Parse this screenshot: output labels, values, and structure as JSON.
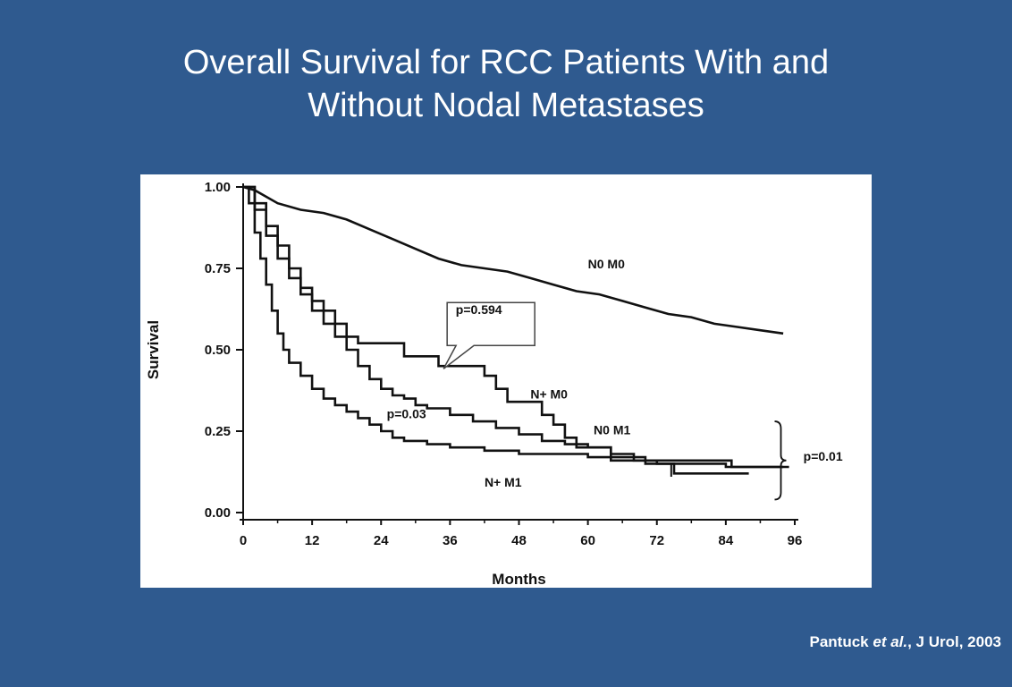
{
  "slide": {
    "title_line1": "Overall Survival for RCC Patients With and",
    "title_line2": "Without Nodal Metastases",
    "citation_author": "Pantuck ",
    "citation_etal": "et al.",
    "citation_rest": ", J Urol, 2003"
  },
  "colors": {
    "background": "#2f5a8f",
    "chart_bg": "#ffffff",
    "ink": "#111111"
  },
  "chart_data": {
    "type": "line",
    "xlabel": "Months",
    "ylabel": "Survival",
    "xlim": [
      0,
      96
    ],
    "ylim": [
      0,
      1
    ],
    "xticks": [
      "0",
      "12",
      "24",
      "36",
      "48",
      "60",
      "72",
      "84",
      "96"
    ],
    "yticks": [
      "0.00",
      "0.25",
      "0.50",
      "0.75",
      "1.00"
    ],
    "grid": false,
    "series": [
      {
        "name": "N0 M0",
        "step": false,
        "points": [
          [
            0,
            1.0
          ],
          [
            2,
            0.99
          ],
          [
            4,
            0.97
          ],
          [
            6,
            0.95
          ],
          [
            10,
            0.93
          ],
          [
            14,
            0.92
          ],
          [
            18,
            0.9
          ],
          [
            22,
            0.87
          ],
          [
            26,
            0.84
          ],
          [
            30,
            0.81
          ],
          [
            34,
            0.78
          ],
          [
            38,
            0.76
          ],
          [
            42,
            0.75
          ],
          [
            46,
            0.74
          ],
          [
            50,
            0.72
          ],
          [
            54,
            0.7
          ],
          [
            58,
            0.68
          ],
          [
            62,
            0.67
          ],
          [
            66,
            0.65
          ],
          [
            70,
            0.63
          ],
          [
            74,
            0.61
          ],
          [
            78,
            0.6
          ],
          [
            82,
            0.58
          ],
          [
            86,
            0.57
          ],
          [
            90,
            0.56
          ],
          [
            94,
            0.55
          ]
        ]
      },
      {
        "name": "N+ M0",
        "step": true,
        "points": [
          [
            0,
            1.0
          ],
          [
            2,
            0.95
          ],
          [
            4,
            0.88
          ],
          [
            6,
            0.82
          ],
          [
            8,
            0.75
          ],
          [
            10,
            0.69
          ],
          [
            12,
            0.65
          ],
          [
            14,
            0.62
          ],
          [
            16,
            0.58
          ],
          [
            18,
            0.54
          ],
          [
            20,
            0.52
          ],
          [
            22,
            0.52
          ],
          [
            28,
            0.48
          ],
          [
            34,
            0.45
          ],
          [
            40,
            0.45
          ],
          [
            42,
            0.42
          ],
          [
            44,
            0.38
          ],
          [
            46,
            0.34
          ],
          [
            50,
            0.34
          ],
          [
            52,
            0.3
          ],
          [
            54,
            0.27
          ],
          [
            56,
            0.23
          ],
          [
            58,
            0.2
          ],
          [
            60,
            0.2
          ],
          [
            64,
            0.16
          ],
          [
            68,
            0.16
          ],
          [
            70,
            0.15
          ],
          [
            75,
            0.12
          ],
          [
            88,
            0.12
          ]
        ]
      },
      {
        "name": "N0 M1",
        "step": true,
        "points": [
          [
            0,
            1.0
          ],
          [
            2,
            0.93
          ],
          [
            4,
            0.85
          ],
          [
            6,
            0.78
          ],
          [
            8,
            0.72
          ],
          [
            10,
            0.67
          ],
          [
            12,
            0.62
          ],
          [
            14,
            0.58
          ],
          [
            16,
            0.54
          ],
          [
            18,
            0.5
          ],
          [
            20,
            0.45
          ],
          [
            22,
            0.41
          ],
          [
            24,
            0.38
          ],
          [
            26,
            0.36
          ],
          [
            28,
            0.35
          ],
          [
            30,
            0.33
          ],
          [
            32,
            0.32
          ],
          [
            36,
            0.3
          ],
          [
            40,
            0.28
          ],
          [
            44,
            0.26
          ],
          [
            48,
            0.24
          ],
          [
            52,
            0.22
          ],
          [
            56,
            0.21
          ],
          [
            60,
            0.2
          ],
          [
            64,
            0.18
          ],
          [
            68,
            0.16
          ],
          [
            72,
            0.15
          ],
          [
            78,
            0.15
          ],
          [
            84,
            0.14
          ],
          [
            95,
            0.14
          ]
        ]
      },
      {
        "name": "N+ M1",
        "step": true,
        "points": [
          [
            0,
            1.0
          ],
          [
            1,
            0.95
          ],
          [
            2,
            0.86
          ],
          [
            3,
            0.78
          ],
          [
            4,
            0.7
          ],
          [
            5,
            0.62
          ],
          [
            6,
            0.55
          ],
          [
            7,
            0.5
          ],
          [
            8,
            0.46
          ],
          [
            10,
            0.42
          ],
          [
            12,
            0.38
          ],
          [
            14,
            0.35
          ],
          [
            16,
            0.33
          ],
          [
            18,
            0.31
          ],
          [
            20,
            0.29
          ],
          [
            22,
            0.27
          ],
          [
            24,
            0.25
          ],
          [
            26,
            0.23
          ],
          [
            28,
            0.22
          ],
          [
            32,
            0.21
          ],
          [
            36,
            0.2
          ],
          [
            42,
            0.19
          ],
          [
            48,
            0.18
          ],
          [
            56,
            0.18
          ],
          [
            60,
            0.17
          ],
          [
            66,
            0.17
          ],
          [
            70,
            0.16
          ],
          [
            80,
            0.16
          ],
          [
            85,
            0.14
          ],
          [
            94,
            0.14
          ]
        ]
      }
    ],
    "annotations": [
      {
        "text": "N0 M0",
        "x": 60,
        "y": 0.75
      },
      {
        "text": "N+ M0",
        "x": 50,
        "y": 0.35
      },
      {
        "text": "N0 M1",
        "x": 61,
        "y": 0.24
      },
      {
        "text": "N+ M1",
        "x": 42,
        "y": 0.08
      },
      {
        "text": "p=0.03",
        "x": 25,
        "y": 0.29
      },
      {
        "text": "p=0.594",
        "x": 37,
        "y": 0.61
      },
      {
        "text": "p=0.01",
        "x": 97.5,
        "y": 0.16
      }
    ]
  }
}
